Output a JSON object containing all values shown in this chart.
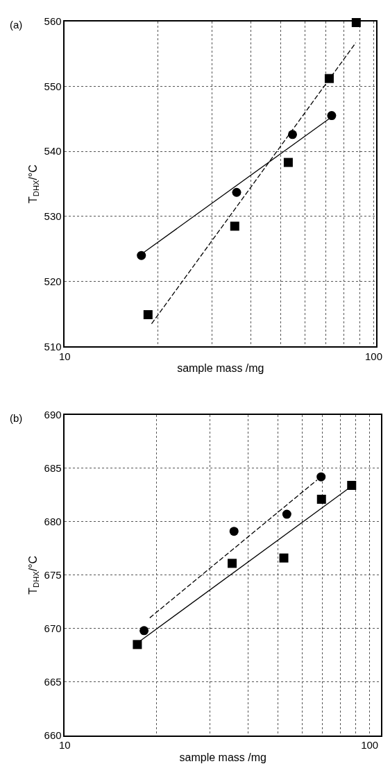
{
  "chart_data": [
    {
      "type": "scatter",
      "annotations": [
        "(a)"
      ],
      "xlabel": "sample mass /mg",
      "ylabel": "T$_{DHX}$/°C",
      "log": "x",
      "grid": true,
      "xlim": [
        10,
        102
      ],
      "xticks": [
        10,
        {
          "value": 20,
          "label": null
        },
        {
          "value": 30,
          "label": null
        },
        {
          "value": 40,
          "label": null
        },
        {
          "value": 50,
          "label": null
        },
        {
          "value": 60,
          "label": null
        },
        {
          "value": 70,
          "label": null
        },
        {
          "value": 80,
          "label": null
        },
        {
          "value": 90,
          "label": null
        },
        100
      ],
      "ylim": [
        510,
        560
      ],
      "yticks": [
        510,
        520,
        530,
        540,
        550,
        560
      ],
      "series": [
        {
          "type": "scatter",
          "marker": "circle",
          "color": "#000000",
          "x": [
            17.7,
            36.0,
            54.6,
            73.1
          ],
          "values": [
            524.0,
            533.7,
            542.6,
            545.5
          ]
        },
        {
          "type": "scatter",
          "marker": "square",
          "color": "#000000",
          "x": [
            18.6,
            35.5,
            52.9,
            71.8,
            87.8
          ],
          "values": [
            514.9,
            528.5,
            538.3,
            551.2,
            559.8
          ]
        },
        {
          "type": "line",
          "marker": "none",
          "line_style": "solid",
          "color": "#000000",
          "x": [
            17.7,
            73.1
          ],
          "values": [
            524.2,
            545.3
          ]
        },
        {
          "type": "line",
          "marker": "none",
          "line_style": "dashed",
          "color": "#000000",
          "x": [
            19.1,
            87.5
          ],
          "values": [
            513.5,
            556.7
          ]
        }
      ]
    },
    {
      "type": "scatter",
      "annotations": [
        "(b)"
      ],
      "xlabel": "sample mass /mg",
      "ylabel": "T$_{DHX}$/°C",
      "log": "x",
      "grid": true,
      "xlim": [
        10,
        109
      ],
      "xticks": [
        10,
        {
          "value": 20,
          "label": null
        },
        {
          "value": 30,
          "label": null
        },
        {
          "value": 40,
          "label": null
        },
        {
          "value": 50,
          "label": null
        },
        {
          "value": 60,
          "label": null
        },
        {
          "value": 70,
          "label": null
        },
        {
          "value": 80,
          "label": null
        },
        {
          "value": 90,
          "label": null
        },
        100
      ],
      "ylim": [
        660,
        690
      ],
      "yticks": [
        660,
        665,
        670,
        675,
        680,
        685,
        690
      ],
      "series": [
        {
          "type": "scatter",
          "marker": "circle",
          "color": "#000000",
          "x": [
            18.2,
            35.9,
            53.5,
            69.3
          ],
          "values": [
            669.8,
            679.1,
            680.7,
            684.2
          ]
        },
        {
          "type": "scatter",
          "marker": "square",
          "color": "#000000",
          "x": [
            17.3,
            35.4,
            52.3,
            69.5,
            87.3
          ],
          "values": [
            668.5,
            676.1,
            676.6,
            682.1,
            683.4
          ]
        },
        {
          "type": "line",
          "marker": "none",
          "line_style": "dashed",
          "color": "#000000",
          "x": [
            19.0,
            67.2
          ],
          "values": [
            671.0,
            683.9
          ]
        },
        {
          "type": "line",
          "marker": "none",
          "line_style": "solid",
          "color": "#000000",
          "x": [
            17.6,
            85.2
          ],
          "values": [
            668.8,
            683.1
          ]
        }
      ]
    }
  ]
}
